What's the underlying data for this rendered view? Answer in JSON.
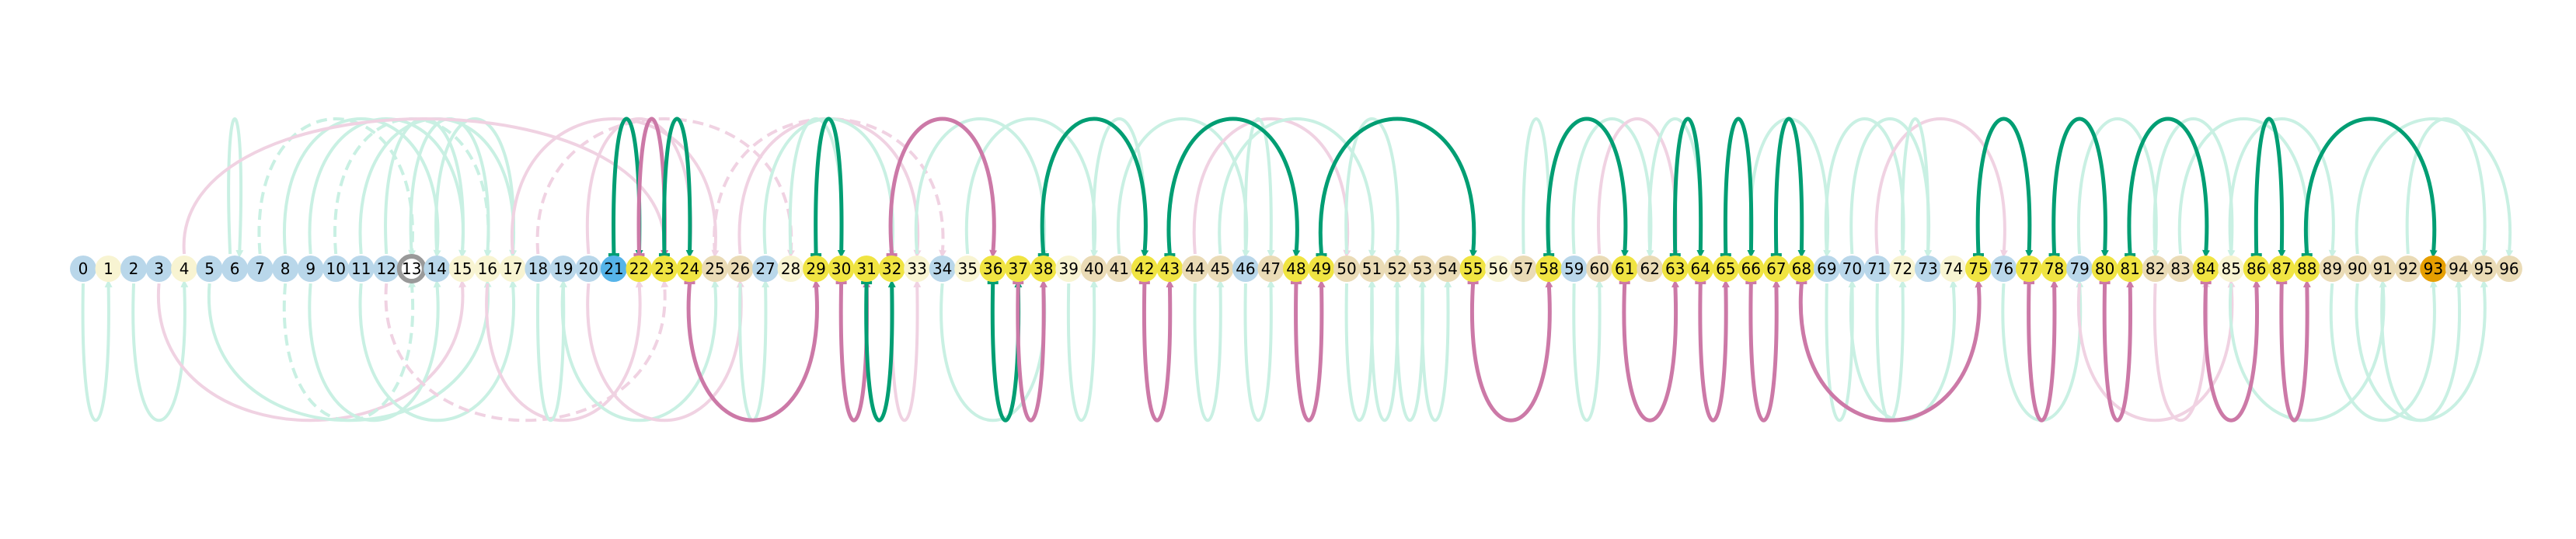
{
  "colors": {
    "background": "#ffffff",
    "node_blue": "#b9d7ea",
    "node_cream": "#f8f4d2",
    "node_tan": "#eadbb6",
    "node_yellow": "#f0e442",
    "node_darkblue": "#56b4e9",
    "node_orange": "#e69f00",
    "node_ring": "#999999",
    "arc_green": "#009e73",
    "arc_pink": "#cc79a7",
    "arc_green_faded": "#c9f0e3",
    "arc_pink_faded": "#f0d2e2"
  },
  "nodes": [
    {
      "label": "0",
      "style": "blue"
    },
    {
      "label": "1",
      "style": "cream"
    },
    {
      "label": "2",
      "style": "blue"
    },
    {
      "label": "3",
      "style": "blue"
    },
    {
      "label": "4",
      "style": "cream"
    },
    {
      "label": "5",
      "style": "blue"
    },
    {
      "label": "6",
      "style": "blue"
    },
    {
      "label": "7",
      "style": "blue"
    },
    {
      "label": "8",
      "style": "blue"
    },
    {
      "label": "9",
      "style": "blue"
    },
    {
      "label": "10",
      "style": "blue"
    },
    {
      "label": "11",
      "style": "blue"
    },
    {
      "label": "12",
      "style": "blue"
    },
    {
      "label": "13",
      "style": "ring"
    },
    {
      "label": "14",
      "style": "blue"
    },
    {
      "label": "15",
      "style": "cream"
    },
    {
      "label": "16",
      "style": "cream"
    },
    {
      "label": "17",
      "style": "cream"
    },
    {
      "label": "18",
      "style": "blue"
    },
    {
      "label": "19",
      "style": "blue"
    },
    {
      "label": "20",
      "style": "blue"
    },
    {
      "label": "21",
      "style": "darkblue"
    },
    {
      "label": "22",
      "style": "yellow"
    },
    {
      "label": "23",
      "style": "yellow"
    },
    {
      "label": "24",
      "style": "yellow"
    },
    {
      "label": "25",
      "style": "tan"
    },
    {
      "label": "26",
      "style": "tan"
    },
    {
      "label": "27",
      "style": "blue"
    },
    {
      "label": "28",
      "style": "cream"
    },
    {
      "label": "29",
      "style": "yellow"
    },
    {
      "label": "30",
      "style": "yellow"
    },
    {
      "label": "31",
      "style": "yellow"
    },
    {
      "label": "32",
      "style": "yellow"
    },
    {
      "label": "33",
      "style": "cream"
    },
    {
      "label": "34",
      "style": "blue"
    },
    {
      "label": "35",
      "style": "cream"
    },
    {
      "label": "36",
      "style": "yellow"
    },
    {
      "label": "37",
      "style": "yellow"
    },
    {
      "label": "38",
      "style": "yellow"
    },
    {
      "label": "39",
      "style": "cream"
    },
    {
      "label": "40",
      "style": "tan"
    },
    {
      "label": "41",
      "style": "tan"
    },
    {
      "label": "42",
      "style": "yellow"
    },
    {
      "label": "43",
      "style": "yellow"
    },
    {
      "label": "44",
      "style": "tan"
    },
    {
      "label": "45",
      "style": "tan"
    },
    {
      "label": "46",
      "style": "blue"
    },
    {
      "label": "47",
      "style": "tan"
    },
    {
      "label": "48",
      "style": "yellow"
    },
    {
      "label": "49",
      "style": "yellow"
    },
    {
      "label": "50",
      "style": "tan"
    },
    {
      "label": "51",
      "style": "tan"
    },
    {
      "label": "52",
      "style": "tan"
    },
    {
      "label": "53",
      "style": "tan"
    },
    {
      "label": "54",
      "style": "tan"
    },
    {
      "label": "55",
      "style": "yellow"
    },
    {
      "label": "56",
      "style": "cream"
    },
    {
      "label": "57",
      "style": "tan"
    },
    {
      "label": "58",
      "style": "yellow"
    },
    {
      "label": "59",
      "style": "blue"
    },
    {
      "label": "60",
      "style": "tan"
    },
    {
      "label": "61",
      "style": "yellow"
    },
    {
      "label": "62",
      "style": "tan"
    },
    {
      "label": "63",
      "style": "yellow"
    },
    {
      "label": "64",
      "style": "yellow"
    },
    {
      "label": "65",
      "style": "yellow"
    },
    {
      "label": "66",
      "style": "yellow"
    },
    {
      "label": "67",
      "style": "yellow"
    },
    {
      "label": "68",
      "style": "yellow"
    },
    {
      "label": "69",
      "style": "blue"
    },
    {
      "label": "70",
      "style": "blue"
    },
    {
      "label": "71",
      "style": "blue"
    },
    {
      "label": "72",
      "style": "cream"
    },
    {
      "label": "73",
      "style": "blue"
    },
    {
      "label": "74",
      "style": "cream"
    },
    {
      "label": "75",
      "style": "yellow"
    },
    {
      "label": "76",
      "style": "blue"
    },
    {
      "label": "77",
      "style": "yellow"
    },
    {
      "label": "78",
      "style": "yellow"
    },
    {
      "label": "79",
      "style": "blue"
    },
    {
      "label": "80",
      "style": "yellow"
    },
    {
      "label": "81",
      "style": "yellow"
    },
    {
      "label": "82",
      "style": "tan"
    },
    {
      "label": "83",
      "style": "tan"
    },
    {
      "label": "84",
      "style": "yellow"
    },
    {
      "label": "85",
      "style": "cream"
    },
    {
      "label": "86",
      "style": "yellow"
    },
    {
      "label": "87",
      "style": "yellow"
    },
    {
      "label": "88",
      "style": "yellow"
    },
    {
      "label": "89",
      "style": "tan"
    },
    {
      "label": "90",
      "style": "tan"
    },
    {
      "label": "91",
      "style": "tan"
    },
    {
      "label": "92",
      "style": "tan"
    },
    {
      "label": "93",
      "style": "orange"
    },
    {
      "label": "94",
      "style": "tan"
    },
    {
      "label": "95",
      "style": "tan"
    },
    {
      "label": "96",
      "style": "tan"
    }
  ],
  "arcs": [
    {
      "from": 21,
      "to": 22,
      "dir": "up",
      "kind": "green",
      "emph": true
    },
    {
      "from": 22,
      "to": 23,
      "dir": "up",
      "kind": "pink",
      "emph": true
    },
    {
      "from": 23,
      "to": 24,
      "dir": "up",
      "kind": "green",
      "emph": true
    },
    {
      "from": 29,
      "to": 30,
      "dir": "up",
      "kind": "green",
      "emph": true
    },
    {
      "from": 32,
      "to": 36,
      "dir": "up",
      "kind": "pink",
      "emph": true
    },
    {
      "from": 38,
      "to": 42,
      "dir": "up",
      "kind": "green",
      "emph": true
    },
    {
      "from": 43,
      "to": 48,
      "dir": "up",
      "kind": "green",
      "emph": true
    },
    {
      "from": 49,
      "to": 55,
      "dir": "up",
      "kind": "green",
      "emph": true
    },
    {
      "from": 58,
      "to": 61,
      "dir": "up",
      "kind": "green",
      "emph": true
    },
    {
      "from": 63,
      "to": 64,
      "dir": "up",
      "kind": "green",
      "emph": true
    },
    {
      "from": 65,
      "to": 66,
      "dir": "up",
      "kind": "green",
      "emph": true
    },
    {
      "from": 67,
      "to": 68,
      "dir": "up",
      "kind": "green",
      "emph": true
    },
    {
      "from": 75,
      "to": 77,
      "dir": "up",
      "kind": "green",
      "emph": true
    },
    {
      "from": 78,
      "to": 80,
      "dir": "up",
      "kind": "green",
      "emph": true
    },
    {
      "from": 81,
      "to": 84,
      "dir": "up",
      "kind": "green",
      "emph": true
    },
    {
      "from": 86,
      "to": 87,
      "dir": "up",
      "kind": "green",
      "emph": true
    },
    {
      "from": 88,
      "to": 93,
      "dir": "up",
      "kind": "green",
      "emph": true
    },
    {
      "from": 24,
      "to": 29,
      "dir": "down",
      "kind": "pink",
      "emph": true
    },
    {
      "from": 30,
      "to": 31,
      "dir": "down",
      "kind": "pink",
      "emph": true
    },
    {
      "from": 31,
      "to": 32,
      "dir": "down",
      "kind": "green",
      "emph": true
    },
    {
      "from": 36,
      "to": 37,
      "dir": "down",
      "kind": "green",
      "emph": true
    },
    {
      "from": 37,
      "to": 38,
      "dir": "down",
      "kind": "pink",
      "emph": true
    },
    {
      "from": 42,
      "to": 43,
      "dir": "down",
      "kind": "pink",
      "emph": true
    },
    {
      "from": 48,
      "to": 49,
      "dir": "down",
      "kind": "pink",
      "emph": true
    },
    {
      "from": 55,
      "to": 58,
      "dir": "down",
      "kind": "pink",
      "emph": true
    },
    {
      "from": 61,
      "to": 63,
      "dir": "down",
      "kind": "pink",
      "emph": true
    },
    {
      "from": 64,
      "to": 65,
      "dir": "down",
      "kind": "pink",
      "emph": true
    },
    {
      "from": 66,
      "to": 67,
      "dir": "down",
      "kind": "pink",
      "emph": true
    },
    {
      "from": 68,
      "to": 75,
      "dir": "down",
      "kind": "pink",
      "emph": true
    },
    {
      "from": 77,
      "to": 78,
      "dir": "down",
      "kind": "pink",
      "emph": true
    },
    {
      "from": 80,
      "to": 81,
      "dir": "down",
      "kind": "pink",
      "emph": true
    },
    {
      "from": 84,
      "to": 86,
      "dir": "down",
      "kind": "pink",
      "emph": true
    },
    {
      "from": 87,
      "to": 88,
      "dir": "down",
      "kind": "pink",
      "emph": true
    },
    {
      "from": 6,
      "to": 6,
      "dir": "up",
      "kind": "green",
      "emph": false
    },
    {
      "from": 8,
      "to": 14,
      "dir": "up",
      "kind": "green",
      "emph": false
    },
    {
      "from": 9,
      "to": 15,
      "dir": "up",
      "kind": "green",
      "emph": false
    },
    {
      "from": 10,
      "to": 16,
      "dir": "up",
      "kind": "green",
      "emph": false,
      "dashed": true
    },
    {
      "from": 11,
      "to": 17,
      "dir": "up",
      "kind": "green",
      "emph": false
    },
    {
      "from": 12,
      "to": 15,
      "dir": "up",
      "kind": "green",
      "emph": false
    },
    {
      "from": 7,
      "to": 13,
      "dir": "up",
      "kind": "green",
      "emph": false,
      "dashed": true
    },
    {
      "from": 13,
      "to": 16,
      "dir": "up",
      "kind": "green",
      "emph": false
    },
    {
      "from": 14,
      "to": 17,
      "dir": "up",
      "kind": "green",
      "emph": false
    },
    {
      "from": 4,
      "to": 23,
      "dir": "up",
      "kind": "pink",
      "emph": false
    },
    {
      "from": 17,
      "to": 25,
      "dir": "up",
      "kind": "pink",
      "emph": false
    },
    {
      "from": 18,
      "to": 28,
      "dir": "up",
      "kind": "pink",
      "emph": false,
      "dashed": true
    },
    {
      "from": 20,
      "to": 24,
      "dir": "up",
      "kind": "pink",
      "emph": false
    },
    {
      "from": 25,
      "to": 34,
      "dir": "up",
      "kind": "pink",
      "emph": false,
      "dashed": true
    },
    {
      "from": 26,
      "to": 33,
      "dir": "up",
      "kind": "pink",
      "emph": false
    },
    {
      "from": 27,
      "to": 32,
      "dir": "up",
      "kind": "green",
      "emph": false
    },
    {
      "from": 28,
      "to": 30,
      "dir": "up",
      "kind": "green",
      "emph": false
    },
    {
      "from": 33,
      "to": 38,
      "dir": "up",
      "kind": "green",
      "emph": false
    },
    {
      "from": 35,
      "to": 40,
      "dir": "up",
      "kind": "green",
      "emph": false
    },
    {
      "from": 40,
      "to": 42,
      "dir": "up",
      "kind": "green",
      "emph": false
    },
    {
      "from": 41,
      "to": 46,
      "dir": "up",
      "kind": "green",
      "emph": false
    },
    {
      "from": 44,
      "to": 50,
      "dir": "up",
      "kind": "pink",
      "emph": false
    },
    {
      "from": 45,
      "to": 51,
      "dir": "up",
      "kind": "green",
      "emph": false
    },
    {
      "from": 46,
      "to": 47,
      "dir": "up",
      "kind": "green",
      "emph": false
    },
    {
      "from": 50,
      "to": 52,
      "dir": "up",
      "kind": "green",
      "emph": false
    },
    {
      "from": 57,
      "to": 58,
      "dir": "up",
      "kind": "green",
      "emph": false
    },
    {
      "from": 59,
      "to": 62,
      "dir": "up",
      "kind": "green",
      "emph": false
    },
    {
      "from": 60,
      "to": 63,
      "dir": "up",
      "kind": "pink",
      "emph": false
    },
    {
      "from": 62,
      "to": 64,
      "dir": "up",
      "kind": "green",
      "emph": false
    },
    {
      "from": 66,
      "to": 69,
      "dir": "up",
      "kind": "green",
      "emph": false
    },
    {
      "from": 69,
      "to": 72,
      "dir": "up",
      "kind": "green",
      "emph": false
    },
    {
      "from": 70,
      "to": 73,
      "dir": "up",
      "kind": "green",
      "emph": false
    },
    {
      "from": 71,
      "to": 76,
      "dir": "up",
      "kind": "pink",
      "emph": false
    },
    {
      "from": 72,
      "to": 73,
      "dir": "up",
      "kind": "green",
      "emph": false
    },
    {
      "from": 79,
      "to": 82,
      "dir": "up",
      "kind": "green",
      "emph": false
    },
    {
      "from": 82,
      "to": 85,
      "dir": "up",
      "kind": "green",
      "emph": false
    },
    {
      "from": 83,
      "to": 88,
      "dir": "up",
      "kind": "green",
      "emph": false
    },
    {
      "from": 85,
      "to": 89,
      "dir": "up",
      "kind": "green",
      "emph": false
    },
    {
      "from": 90,
      "to": 96,
      "dir": "up",
      "kind": "green",
      "emph": false
    },
    {
      "from": 92,
      "to": 95,
      "dir": "up",
      "kind": "green",
      "emph": false
    },
    {
      "from": 0,
      "to": 1,
      "dir": "down",
      "kind": "green",
      "emph": false
    },
    {
      "from": 2,
      "to": 4,
      "dir": "down",
      "kind": "green",
      "emph": false
    },
    {
      "from": 3,
      "to": 15,
      "dir": "down",
      "kind": "pink",
      "emph": false
    },
    {
      "from": 5,
      "to": 16,
      "dir": "down",
      "kind": "green",
      "emph": false
    },
    {
      "from": 8,
      "to": 13,
      "dir": "down",
      "kind": "green",
      "emph": false,
      "dashed": true
    },
    {
      "from": 9,
      "to": 14,
      "dir": "down",
      "kind": "green",
      "emph": false
    },
    {
      "from": 11,
      "to": 17,
      "dir": "down",
      "kind": "green",
      "emph": false
    },
    {
      "from": 12,
      "to": 23,
      "dir": "down",
      "kind": "pink",
      "emph": false,
      "dashed": true
    },
    {
      "from": 16,
      "to": 22,
      "dir": "down",
      "kind": "pink",
      "emph": false
    },
    {
      "from": 18,
      "to": 19,
      "dir": "down",
      "kind": "green",
      "emph": false
    },
    {
      "from": 19,
      "to": 25,
      "dir": "down",
      "kind": "green",
      "emph": false
    },
    {
      "from": 20,
      "to": 26,
      "dir": "down",
      "kind": "pink",
      "emph": false
    },
    {
      "from": 26,
      "to": 27,
      "dir": "down",
      "kind": "green",
      "emph": false
    },
    {
      "from": 32,
      "to": 33,
      "dir": "down",
      "kind": "pink",
      "emph": false
    },
    {
      "from": 34,
      "to": 38,
      "dir": "down",
      "kind": "green",
      "emph": false
    },
    {
      "from": 39,
      "to": 40,
      "dir": "down",
      "kind": "green",
      "emph": false
    },
    {
      "from": 44,
      "to": 45,
      "dir": "down",
      "kind": "green",
      "emph": false
    },
    {
      "from": 46,
      "to": 47,
      "dir": "down",
      "kind": "green",
      "emph": false
    },
    {
      "from": 50,
      "to": 51,
      "dir": "down",
      "kind": "green",
      "emph": false
    },
    {
      "from": 51,
      "to": 52,
      "dir": "down",
      "kind": "green",
      "emph": false
    },
    {
      "from": 52,
      "to": 53,
      "dir": "down",
      "kind": "green",
      "emph": false
    },
    {
      "from": 53,
      "to": 54,
      "dir": "down",
      "kind": "green",
      "emph": false
    },
    {
      "from": 59,
      "to": 60,
      "dir": "down",
      "kind": "green",
      "emph": false
    },
    {
      "from": 69,
      "to": 70,
      "dir": "down",
      "kind": "green",
      "emph": false
    },
    {
      "from": 70,
      "to": 74,
      "dir": "down",
      "kind": "green",
      "emph": false
    },
    {
      "from": 71,
      "to": 72,
      "dir": "down",
      "kind": "green",
      "emph": false
    },
    {
      "from": 76,
      "to": 79,
      "dir": "down",
      "kind": "green",
      "emph": false
    },
    {
      "from": 79,
      "to": 85,
      "dir": "down",
      "kind": "pink",
      "emph": false
    },
    {
      "from": 82,
      "to": 84,
      "dir": "down",
      "kind": "pink",
      "emph": false
    },
    {
      "from": 85,
      "to": 91,
      "dir": "down",
      "kind": "green",
      "emph": false
    },
    {
      "from": 89,
      "to": 93,
      "dir": "down",
      "kind": "green",
      "emph": false
    },
    {
      "from": 90,
      "to": 95,
      "dir": "down",
      "kind": "green",
      "emph": false
    },
    {
      "from": 91,
      "to": 94,
      "dir": "down",
      "kind": "green",
      "emph": false
    }
  ]
}
